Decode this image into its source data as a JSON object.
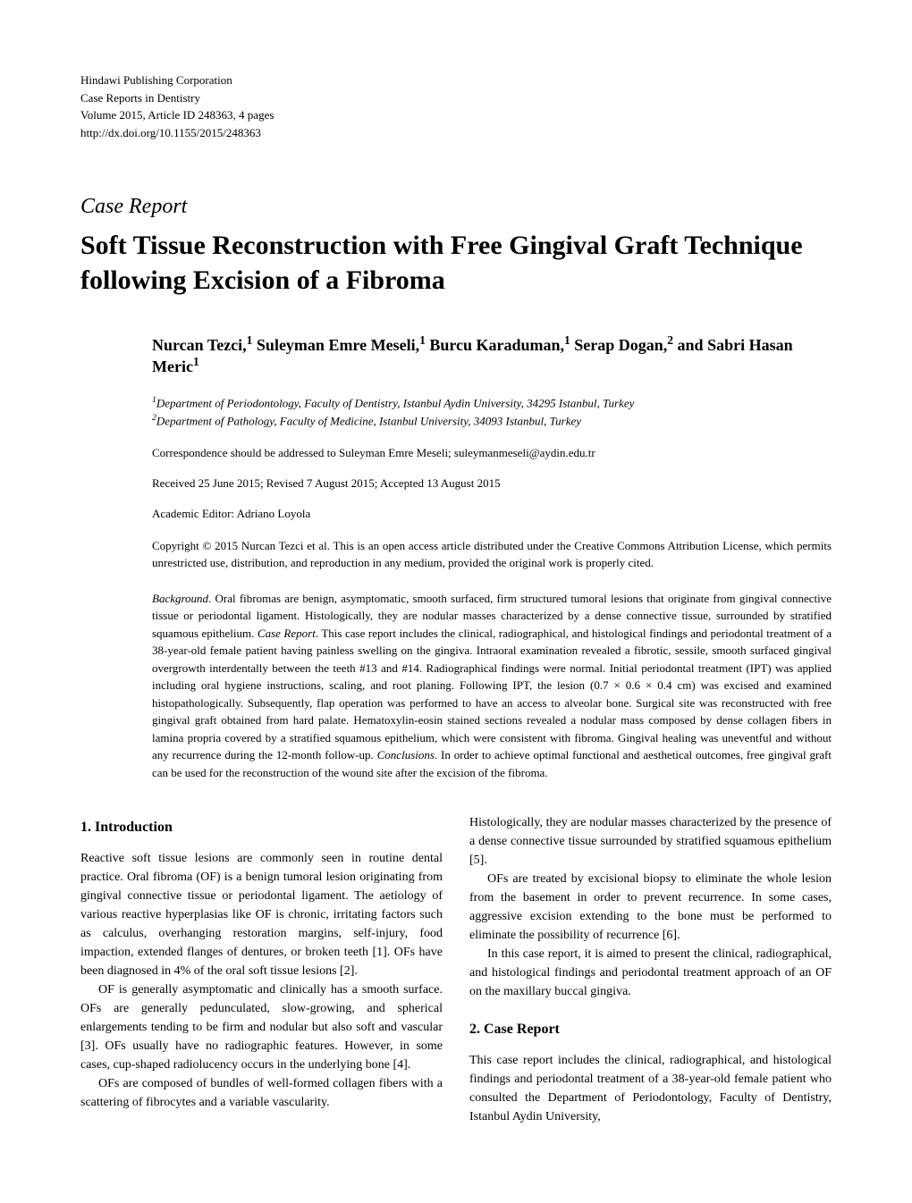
{
  "header": {
    "publisher": "Hindawi Publishing Corporation",
    "journal": "Case Reports in Dentistry",
    "volume": "Volume 2015, Article ID 248363, 4 pages",
    "doi": "http://dx.doi.org/10.1155/2015/248363"
  },
  "article_type": "Case Report",
  "title": "Soft Tissue Reconstruction with Free Gingival Graft Technique following Excision of a Fibroma",
  "authors_html": "Nurcan Tezci,<sup>1</sup> Suleyman Emre Meseli,<sup>1</sup> Burcu Karaduman,<sup>1</sup> Serap Dogan,<sup>2</sup> and Sabri Hasan Meric<sup>1</sup>",
  "affiliations": {
    "aff1": "Department of Periodontology, Faculty of Dentistry, Istanbul Aydin University, 34295 Istanbul, Turkey",
    "aff2": "Department of Pathology, Faculty of Medicine, Istanbul University, 34093 Istanbul, Turkey"
  },
  "correspondence": "Correspondence should be addressed to Suleyman Emre Meseli; suleymanmeseli@aydin.edu.tr",
  "dates": "Received 25 June 2015; Revised 7 August 2015; Accepted 13 August 2015",
  "editor": "Academic Editor: Adriano Loyola",
  "copyright": "Copyright © 2015 Nurcan Tezci et al. This is an open access article distributed under the Creative Commons Attribution License, which permits unrestricted use, distribution, and reproduction in any medium, provided the original work is properly cited.",
  "abstract": {
    "label_background": "Background",
    "background": ". Oral fibromas are benign, asymptomatic, smooth surfaced, firm structured tumoral lesions that originate from gingival connective tissue or periodontal ligament. Histologically, they are nodular masses characterized by a dense connective tissue, surrounded by stratified squamous epithelium. ",
    "label_casereport": "Case Report",
    "casereport": ". This case report includes the clinical, radiographical, and histological findings and periodontal treatment of a 38-year-old female patient having painless swelling on the gingiva. Intraoral examination revealed a fibrotic, sessile, smooth surfaced gingival overgrowth interdentally between the teeth #13 and #14. Radiographical findings were normal. Initial periodontal treatment (IPT) was applied including oral hygiene instructions, scaling, and root planing. Following IPT, the lesion (0.7 × 0.6 × 0.4 cm) was excised and examined histopathologically. Subsequently, flap operation was performed to have an access to alveolar bone. Surgical site was reconstructed with free gingival graft obtained from hard palate. Hematoxylin-eosin stained sections revealed a nodular mass composed by dense collagen fibers in lamina propria covered by a stratified squamous epithelium, which were consistent with fibroma. Gingival healing was uneventful and without any recurrence during the 12-month follow-up. ",
    "label_conclusions": "Conclusions",
    "conclusions": ". In order to achieve optimal functional and aesthetical outcomes, free gingival graft can be used for the reconstruction of the wound site after the excision of the fibroma."
  },
  "sections": {
    "intro_heading": "1. Introduction",
    "intro_p1": "Reactive soft tissue lesions are commonly seen in routine dental practice. Oral fibroma (OF) is a benign tumoral lesion originating from gingival connective tissue or periodontal ligament. The aetiology of various reactive hyperplasias like OF is chronic, irritating factors such as calculus, overhanging restoration margins, self-injury, food impaction, extended flanges of dentures, or broken teeth [1]. OFs have been diagnosed in 4% of the oral soft tissue lesions [2].",
    "intro_p2": "OF is generally asymptomatic and clinically has a smooth surface. OFs are generally pedunculated, slow-growing, and spherical enlargements tending to be firm and nodular but also soft and vascular [3]. OFs usually have no radiographic features. However, in some cases, cup-shaped radiolucency occurs in the underlying bone [4].",
    "intro_p3": "OFs are composed of bundles of well-formed collagen fibers with a scattering of fibrocytes and a variable vascularity.",
    "col2_p1": "Histologically, they are nodular masses characterized by the presence of a dense connective tissue surrounded by stratified squamous epithelium [5].",
    "col2_p2": "OFs are treated by excisional biopsy to eliminate the whole lesion from the basement in order to prevent recurrence. In some cases, aggressive excision extending to the bone must be performed to eliminate the possibility of recurrence [6].",
    "col2_p3": "In this case report, it is aimed to present the clinical, radiographical, and histological findings and periodontal treatment approach of an OF on the maxillary buccal gingiva.",
    "case_heading": "2. Case Report",
    "case_p1": "This case report includes the clinical, radiographical, and histological findings and periodontal treatment of a 38-year-old female patient who consulted the Department of Periodontology, Faculty of Dentistry, Istanbul Aydin University,"
  }
}
